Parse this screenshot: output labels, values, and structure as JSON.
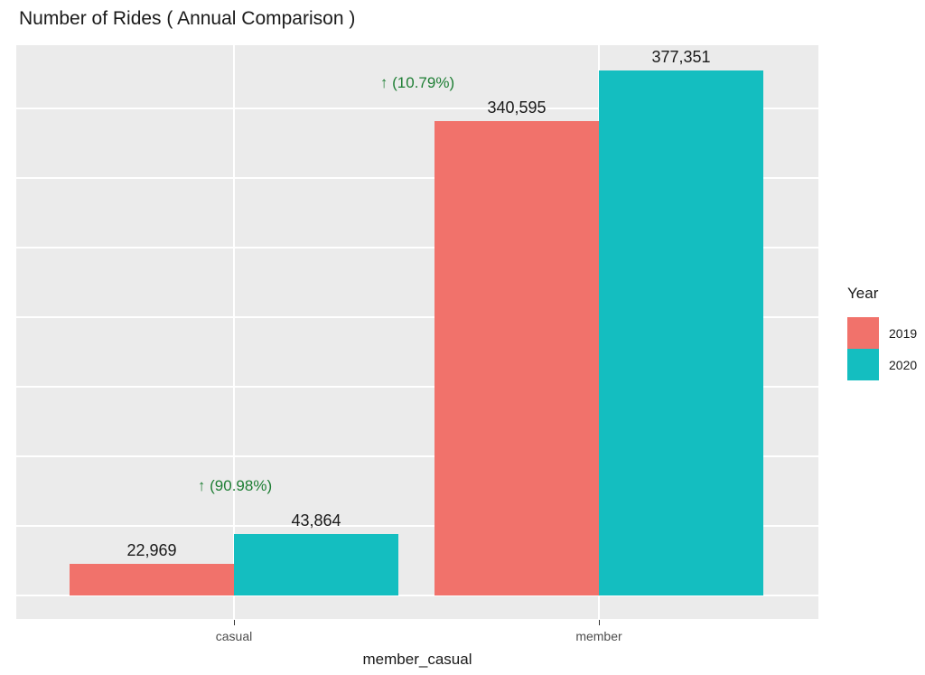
{
  "chart_data": {
    "type": "bar",
    "title": "Number of Rides ( Annual Comparison )",
    "xlabel": "member_casual",
    "ylabel": "",
    "categories": [
      "casual",
      "member"
    ],
    "series": [
      {
        "name": "2019",
        "color": "#F1726B",
        "values": [
          22969,
          340595
        ],
        "value_labels": [
          "22,969",
          "340,595"
        ]
      },
      {
        "name": "2020",
        "color": "#14BEC0",
        "values": [
          43864,
          377351
        ],
        "value_labels": [
          "43,864",
          "377,351"
        ]
      }
    ],
    "annotations": [
      {
        "text": "↑ (90.98%)",
        "category": "casual",
        "color": "#1E7E34"
      },
      {
        "text": "↑ (10.79%)",
        "category": "member",
        "color": "#1E7E34"
      }
    ],
    "legend": {
      "title": "Year",
      "position": "right"
    },
    "ylim": [
      0,
      395000
    ],
    "gridline_interval": 50000,
    "grid": "white major gridlines on gray panel, horizontal every 50000, vertical at category centers",
    "panel_background": "#EBEBEB",
    "gridline_color": "#FFFFFF",
    "title_color": "#1a1a1a",
    "value_label_color": "#1a1a1a",
    "axis_text_color": "#4D4D4D"
  }
}
